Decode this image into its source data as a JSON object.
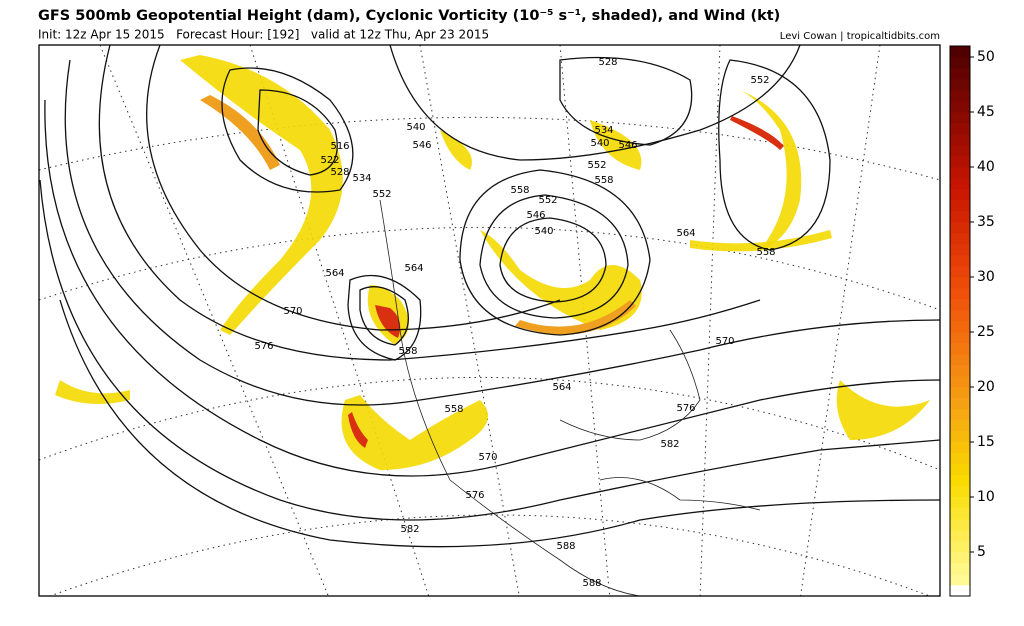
{
  "header": {
    "title": "GFS 500mb Geopotential Height (dam), Cyclonic Vorticity (10⁻⁵ s⁻¹, shaded), and Wind (kt)",
    "subtitle": "Init: 12z Apr 15 2015   Forecast Hour: [192]   valid at 12z Thu, Apr 23 2015",
    "credit": "Levi Cowan | tropicaltidbits.com"
  },
  "colorbar": {
    "range": [
      1,
      51
    ],
    "ticks": [
      5,
      10,
      15,
      20,
      25,
      30,
      35,
      40,
      45,
      50
    ]
  },
  "contour_labels": [
    "528",
    "552",
    "534",
    "540",
    "546",
    "540",
    "546",
    "516",
    "522",
    "528",
    "534",
    "552",
    "558",
    "552",
    "546",
    "540",
    "552",
    "558",
    "564",
    "558",
    "564",
    "564",
    "570",
    "576",
    "558",
    "570",
    "564",
    "576",
    "558",
    "582",
    "570",
    "576",
    "582",
    "588",
    "588"
  ]
}
